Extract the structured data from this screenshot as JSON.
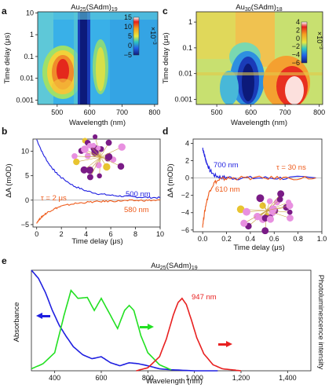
{
  "chart_data": [
    {
      "panel": "a",
      "type": "heatmap",
      "title": "Au",
      "title_sub": "25",
      "title_tail": "(SAdm)",
      "title_sub2": "19",
      "xlabel": "Wavelength (nm)",
      "ylabel": "Time delay (μs)",
      "xticks": [
        500,
        600,
        700,
        800
      ],
      "yticks": [
        "10",
        "1",
        "0.1",
        "0.01",
        "0.001"
      ],
      "xlim": [
        440,
        810
      ],
      "ylim_log10": [
        -3.2,
        1.05
      ],
      "colorbar": {
        "ticks": [
          15,
          10,
          5,
          0,
          -5
        ],
        "label": "×10",
        "label_exp": "−3"
      }
    },
    {
      "panel": "c",
      "type": "heatmap",
      "title": "Au",
      "title_sub": "30",
      "title_tail": "(SAdm)",
      "title_sub2": "18",
      "xlabel": "Wavelength (nm)",
      "ylabel": "Time delay (μs)",
      "xticks": [
        500,
        600,
        700,
        800
      ],
      "yticks": [
        "1",
        "0.1",
        "0.01",
        "0.001"
      ],
      "xlim": [
        440,
        810
      ],
      "ylim_log10": [
        -3.2,
        0.4
      ],
      "colorbar": {
        "ticks": [
          4,
          2,
          0,
          -2,
          -4,
          -6
        ],
        "label": "×10",
        "label_exp": "−3"
      }
    },
    {
      "panel": "b",
      "type": "line",
      "xlabel": "Time delay (μs)",
      "ylabel": "ΔA (mOD)",
      "xticks": [
        0,
        2,
        4,
        6,
        8,
        10
      ],
      "yticks": [
        -5,
        0,
        5,
        10
      ],
      "xlim": [
        -0.3,
        10
      ],
      "ylim": [
        -5.5,
        12.5
      ],
      "annotation": "τ = 2 μs",
      "series": [
        {
          "name": "500 nm",
          "color": "#1f1fe0",
          "x": [
            0,
            0.5,
            1,
            1.5,
            2,
            3,
            4,
            5,
            6,
            7,
            8,
            9,
            10
          ],
          "y": [
            12.4,
            9.5,
            7.4,
            5.8,
            4.6,
            2.9,
            1.9,
            1.3,
            1.0,
            0.8,
            0.65,
            0.55,
            0.5
          ]
        },
        {
          "name": "580 nm",
          "color": "#ee5a1a",
          "x": [
            0,
            0.3,
            0.6,
            1,
            1.5,
            2,
            3,
            4,
            5,
            6,
            7,
            8,
            9,
            10
          ],
          "y": [
            -4.6,
            -3.7,
            -3.0,
            -2.3,
            -1.7,
            -1.25,
            -0.72,
            -0.45,
            -0.3,
            -0.2,
            -0.12,
            -0.08,
            -0.05,
            -0.03
          ]
        }
      ]
    },
    {
      "panel": "d",
      "type": "line",
      "xlabel": "Time delay (μs)",
      "ylabel": "ΔA (mOD)",
      "xticks": [
        0.0,
        0.2,
        0.4,
        0.6,
        0.8,
        1.0
      ],
      "yticks": [
        -6,
        -4,
        -2,
        0,
        2,
        4
      ],
      "xlim": [
        -0.08,
        1.0
      ],
      "ylim": [
        -6.2,
        4.5
      ],
      "annotation": "τ = 30 ns",
      "series": [
        {
          "name": "700 nm",
          "color": "#1f1fe0",
          "x": [
            0,
            0.01,
            0.03,
            0.06,
            0.1,
            0.15,
            0.2,
            0.3,
            0.5,
            0.7,
            0.95
          ],
          "y": [
            3.5,
            2.9,
            1.9,
            0.9,
            0.3,
            0.1,
            0.05,
            0.0,
            0.0,
            0.0,
            0.0
          ]
        },
        {
          "name": "610 nm",
          "color": "#ee5a1a",
          "x": [
            0,
            0.01,
            0.03,
            0.06,
            0.1,
            0.15,
            0.2,
            0.3,
            0.5,
            0.7,
            0.95
          ],
          "y": [
            -5.5,
            -4.5,
            -2.9,
            -1.4,
            -0.5,
            -0.15,
            -0.05,
            0.0,
            0.0,
            0.0,
            0.0
          ]
        }
      ]
    },
    {
      "panel": "e",
      "type": "line",
      "title": "Au",
      "title_sub": "25",
      "title_tail": "(SAdm)",
      "title_sub2": "19",
      "xlabel": "Wavelength (nm)",
      "ylabel_left": "Absorbance",
      "ylabel_right": "Photoluminescence intensity",
      "xticks": [
        "400",
        "600",
        "800",
        "1,000",
        "1,200",
        "1,400"
      ],
      "xtick_values": [
        400,
        600,
        800,
        1000,
        1200,
        1400
      ],
      "xlim": [
        300,
        1500
      ],
      "ylim": [
        0,
        1
      ],
      "annotation": "947 nm",
      "series": [
        {
          "color": "#1f1fe0",
          "x": [
            300,
            330,
            360,
            390,
            420,
            450,
            480,
            520,
            560,
            600,
            640,
            680,
            720,
            760,
            800,
            850,
            900,
            1000,
            1100
          ],
          "y": [
            1.0,
            0.92,
            0.78,
            0.6,
            0.45,
            0.34,
            0.24,
            0.16,
            0.12,
            0.14,
            0.08,
            0.05,
            0.08,
            0.07,
            0.05,
            0.02,
            0.01,
            0.0,
            0.0
          ]
        },
        {
          "color": "#22e022",
          "x": [
            300,
            350,
            400,
            440,
            470,
            500,
            540,
            570,
            600,
            640,
            670,
            700,
            720,
            740,
            770,
            800,
            850,
            900
          ],
          "y": [
            0.02,
            0.07,
            0.18,
            0.55,
            0.8,
            0.72,
            0.73,
            0.6,
            0.72,
            0.55,
            0.42,
            0.6,
            0.65,
            0.6,
            0.35,
            0.18,
            0.06,
            0.01
          ]
        },
        {
          "color": "#e82020",
          "x": [
            750,
            800,
            850,
            880,
            910,
            930,
            947,
            965,
            985,
            1010,
            1040,
            1080,
            1120,
            1160,
            1200
          ],
          "y": [
            0.0,
            0.03,
            0.14,
            0.32,
            0.56,
            0.68,
            0.72,
            0.66,
            0.52,
            0.33,
            0.17,
            0.06,
            0.02,
            0.01,
            0.0
          ]
        }
      ]
    }
  ],
  "labels": {
    "a": "a",
    "b": "b",
    "c": "c",
    "d": "d",
    "e": "e"
  }
}
